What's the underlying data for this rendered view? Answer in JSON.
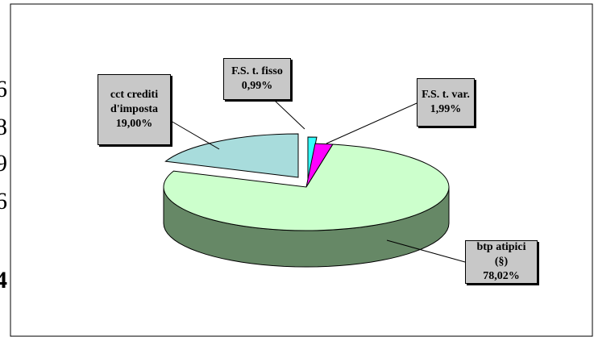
{
  "cropped_text": [
    "6",
    "8",
    "9",
    "6",
    "4"
  ],
  "chart_data": {
    "type": "pie",
    "categories": [
      "F.S. t. fisso",
      "F.S. t. var.",
      "btp atipici (§)",
      "cct crediti d'imposta"
    ],
    "values": [
      0.99,
      1.99,
      78.02,
      19.0
    ],
    "value_labels": [
      "0,99%",
      "1,99%",
      "78,02%",
      "19,00%"
    ],
    "colors": [
      "#33ffff",
      "#ff00ff",
      "#ccffcc",
      "#a8dcdc"
    ],
    "side_colors": [
      "#1a9999",
      "#880088",
      "#668866",
      "#5a8a8a"
    ]
  }
}
